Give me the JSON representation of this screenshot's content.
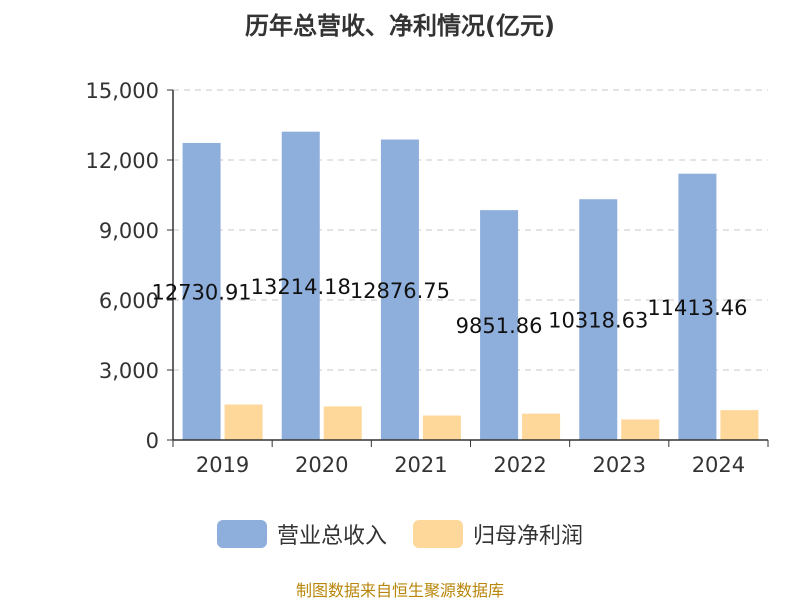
{
  "title": "历年总营收、净利情况(亿元)",
  "source_note": "制图数据来自恒生聚源数据库",
  "colors": {
    "revenue": "#8eaedb",
    "profit": "#fdd89a",
    "axis": "#333333",
    "grid": "#c8c8c8"
  },
  "chart_data": {
    "type": "bar",
    "categories": [
      "2019",
      "2020",
      "2021",
      "2022",
      "2023",
      "2024"
    ],
    "series": [
      {
        "name": "营业总收入",
        "values": [
          12730.91,
          13214.18,
          12876.75,
          9851.86,
          10318.63,
          11413.46
        ],
        "labels": [
          "12730.91",
          "13214.18",
          "12876.75",
          "9851.86",
          "10318.63",
          "11413.46"
        ]
      },
      {
        "name": "归母净利润",
        "values": [
          1520,
          1440,
          1050,
          1130,
          880,
          1280
        ]
      }
    ],
    "yticks": [
      "0",
      "3,000",
      "6,000",
      "9,000",
      "12,000",
      "15,000"
    ],
    "ylim": [
      0,
      15000
    ],
    "grid": true,
    "legend_position": "bottom"
  }
}
